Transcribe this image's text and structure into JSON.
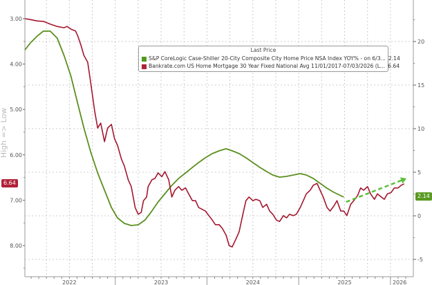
{
  "chart_data": {
    "type": "line",
    "title": "",
    "x_unit": "months since Jan 2022",
    "x_tick_labels": [
      {
        "label": "2022",
        "x": 6
      },
      {
        "label": "2023",
        "x": 18
      },
      {
        "label": "2024",
        "x": 30
      },
      {
        "label": "2025",
        "x": 42
      },
      {
        "label": "2026",
        "x": 49.2
      }
    ],
    "year_boundaries": [
      12,
      24,
      36,
      48
    ],
    "left_axis": {
      "label": "High => Low",
      "inverted": true,
      "ylim": [
        2.6,
        8.7
      ],
      "ticks": [
        "3.00",
        "4.00",
        "5.00",
        "6.00",
        "7.00",
        "8.00"
      ]
    },
    "right_axis": {
      "ylim": [
        -7,
        24.8
      ],
      "ticks": [
        "20",
        "15",
        "10",
        "5",
        "0",
        "-5"
      ]
    },
    "legend": {
      "header": "Last Price",
      "placement": "top-center"
    },
    "series": [
      {
        "name": "S&P CoreLogic Case-Shiller 20-City Composite City Home Price NSA Index YOY% -  on 6/3...",
        "last_value": "2.14",
        "axis": "right",
        "color": "#5a8f1e",
        "points": [
          [
            0.2,
            19.05
          ],
          [
            0.9,
            19.84
          ],
          [
            1.8,
            20.63
          ],
          [
            2.6,
            21.19
          ],
          [
            3.5,
            21.19
          ],
          [
            4.4,
            20.4
          ],
          [
            5.3,
            18.41
          ],
          [
            6.2,
            16.03
          ],
          [
            7.1,
            12.86
          ],
          [
            7.9,
            10.08
          ],
          [
            8.8,
            7.3
          ],
          [
            9.7,
            4.92
          ],
          [
            10.6,
            2.94
          ],
          [
            11.5,
            0.95
          ],
          [
            12.3,
            -0.24
          ],
          [
            13.2,
            -0.87
          ],
          [
            14.1,
            -1.11
          ],
          [
            15.0,
            -1.03
          ],
          [
            15.9,
            -0.48
          ],
          [
            16.8,
            0.56
          ],
          [
            17.6,
            1.59
          ],
          [
            18.5,
            2.54
          ],
          [
            19.4,
            3.49
          ],
          [
            20.3,
            4.29
          ],
          [
            21.2,
            4.92
          ],
          [
            22.1,
            5.56
          ],
          [
            22.9,
            6.11
          ],
          [
            23.8,
            6.67
          ],
          [
            24.7,
            7.14
          ],
          [
            25.6,
            7.46
          ],
          [
            26.5,
            7.7
          ],
          [
            27.3,
            7.46
          ],
          [
            28.2,
            7.14
          ],
          [
            29.1,
            6.67
          ],
          [
            30.0,
            6.11
          ],
          [
            30.9,
            5.56
          ],
          [
            31.8,
            5.08
          ],
          [
            32.6,
            4.68
          ],
          [
            33.5,
            4.44
          ],
          [
            34.4,
            4.52
          ],
          [
            35.3,
            4.68
          ],
          [
            36.2,
            4.84
          ],
          [
            37.0,
            4.68
          ],
          [
            37.9,
            4.29
          ],
          [
            38.8,
            3.73
          ],
          [
            39.7,
            3.17
          ],
          [
            40.6,
            2.7
          ],
          [
            41.9,
            2.14
          ]
        ]
      },
      {
        "name": "Bankrate.com US Home Mortgage 30 Year Fixed National Avg 11/01/2017-07/03/2026    (L...",
        "last_value": "6.64",
        "axis": "left",
        "color": "#a3162e",
        "points": [
          [
            0.2,
            3.0
          ],
          [
            0.9,
            3.02
          ],
          [
            1.8,
            3.05
          ],
          [
            2.6,
            3.06
          ],
          [
            3.5,
            3.12
          ],
          [
            4.4,
            3.17
          ],
          [
            5.3,
            3.2
          ],
          [
            5.7,
            3.17
          ],
          [
            6.2,
            3.23
          ],
          [
            6.8,
            3.27
          ],
          [
            7.1,
            3.38
          ],
          [
            7.5,
            3.58
          ],
          [
            7.9,
            3.81
          ],
          [
            8.4,
            3.96
          ],
          [
            8.8,
            4.42
          ],
          [
            9.3,
            5.03
          ],
          [
            9.7,
            5.41
          ],
          [
            10.1,
            5.3
          ],
          [
            10.6,
            5.71
          ],
          [
            11.0,
            5.41
          ],
          [
            11.5,
            5.33
          ],
          [
            11.9,
            5.64
          ],
          [
            12.3,
            5.79
          ],
          [
            12.8,
            6.09
          ],
          [
            13.2,
            6.25
          ],
          [
            13.7,
            6.55
          ],
          [
            14.1,
            6.7
          ],
          [
            14.6,
            7.16
          ],
          [
            15.0,
            7.31
          ],
          [
            15.4,
            7.27
          ],
          [
            15.7,
            7.01
          ],
          [
            16.1,
            6.93
          ],
          [
            16.3,
            6.7
          ],
          [
            16.8,
            6.55
          ],
          [
            17.2,
            6.52
          ],
          [
            17.6,
            6.4
          ],
          [
            18.1,
            6.48
          ],
          [
            18.5,
            6.37
          ],
          [
            19.0,
            6.55
          ],
          [
            19.4,
            6.93
          ],
          [
            19.8,
            6.78
          ],
          [
            20.3,
            6.7
          ],
          [
            20.7,
            6.78
          ],
          [
            21.2,
            6.73
          ],
          [
            21.6,
            6.86
          ],
          [
            22.1,
            7.01
          ],
          [
            22.5,
            7.01
          ],
          [
            22.9,
            7.16
          ],
          [
            23.8,
            7.24
          ],
          [
            24.7,
            7.44
          ],
          [
            25.1,
            7.54
          ],
          [
            25.6,
            7.54
          ],
          [
            26.0,
            7.62
          ],
          [
            26.5,
            7.77
          ],
          [
            26.9,
            8.0
          ],
          [
            27.3,
            8.03
          ],
          [
            27.8,
            7.85
          ],
          [
            28.2,
            7.7
          ],
          [
            28.7,
            7.31
          ],
          [
            29.1,
            7.01
          ],
          [
            29.5,
            6.93
          ],
          [
            30.0,
            7.01
          ],
          [
            30.4,
            6.98
          ],
          [
            30.9,
            7.01
          ],
          [
            31.3,
            7.16
          ],
          [
            31.8,
            7.09
          ],
          [
            32.2,
            7.24
          ],
          [
            32.6,
            7.31
          ],
          [
            33.1,
            7.44
          ],
          [
            33.5,
            7.47
          ],
          [
            34.0,
            7.34
          ],
          [
            34.4,
            7.39
          ],
          [
            34.8,
            7.31
          ],
          [
            35.3,
            7.34
          ],
          [
            35.7,
            7.31
          ],
          [
            36.2,
            7.16
          ],
          [
            36.6,
            7.01
          ],
          [
            37.0,
            6.86
          ],
          [
            37.5,
            6.78
          ],
          [
            37.9,
            6.67
          ],
          [
            38.4,
            6.63
          ],
          [
            38.8,
            6.78
          ],
          [
            39.2,
            6.93
          ],
          [
            39.7,
            7.16
          ],
          [
            40.1,
            7.24
          ],
          [
            40.6,
            7.13
          ],
          [
            41.0,
            7.01
          ],
          [
            41.5,
            7.24
          ],
          [
            41.9,
            7.24
          ],
          [
            42.3,
            7.34
          ],
          [
            42.8,
            7.09
          ],
          [
            43.2,
            7.01
          ],
          [
            43.7,
            6.9
          ],
          [
            44.1,
            6.73
          ],
          [
            44.5,
            6.78
          ],
          [
            45.0,
            6.7
          ],
          [
            45.4,
            6.86
          ],
          [
            45.9,
            6.98
          ],
          [
            46.3,
            6.86
          ],
          [
            46.8,
            6.93
          ],
          [
            47.2,
            6.98
          ],
          [
            47.6,
            6.86
          ],
          [
            48.1,
            6.83
          ],
          [
            48.5,
            6.73
          ],
          [
            49.0,
            6.73
          ],
          [
            49.4,
            6.67
          ],
          [
            49.8,
            6.64
          ]
        ]
      }
    ],
    "annotations": [
      {
        "type": "dashed-arrow",
        "color": "#5bbf3a",
        "axis": "right",
        "from": [
          42.2,
          1.59
        ],
        "to": [
          50.1,
          4.29
        ]
      }
    ],
    "grid": true
  }
}
